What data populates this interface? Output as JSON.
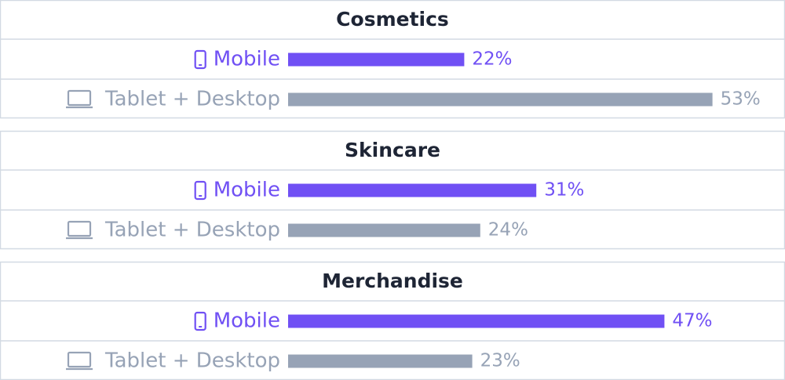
{
  "chart_data": [
    {
      "type": "bar",
      "title": "Cosmetics",
      "categories": [
        "Mobile",
        "Tablet + Desktop"
      ],
      "values": [
        22,
        53
      ],
      "value_labels": [
        "22%",
        "53%"
      ],
      "colors": [
        "#7050f4",
        "#97a3b6"
      ]
    },
    {
      "type": "bar",
      "title": "Skincare",
      "categories": [
        "Mobile",
        "Tablet + Desktop"
      ],
      "values": [
        31,
        24
      ],
      "value_labels": [
        "31%",
        "24%"
      ],
      "colors": [
        "#7050f4",
        "#97a3b6"
      ]
    },
    {
      "type": "bar",
      "title": "Merchandise",
      "categories": [
        "Mobile",
        "Tablet + Desktop"
      ],
      "values": [
        47,
        23
      ],
      "value_labels": [
        "47%",
        "23%"
      ],
      "colors": [
        "#7050f4",
        "#97a3b6"
      ]
    }
  ]
}
